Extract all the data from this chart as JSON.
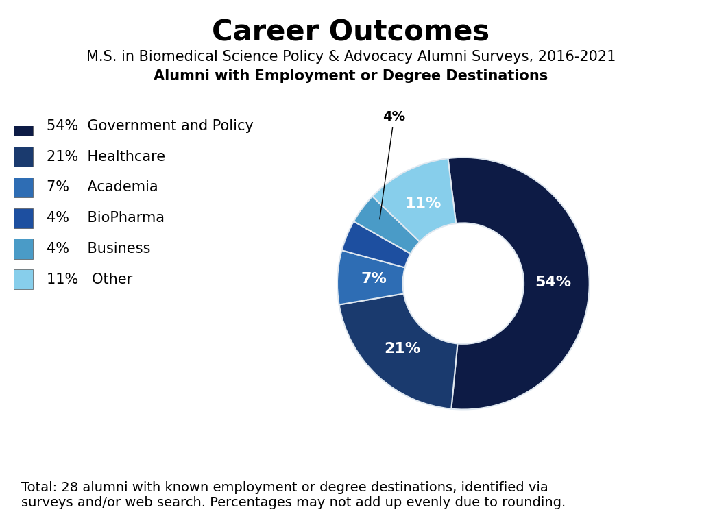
{
  "title": "Career Outcomes",
  "subtitle1": "M.S. in Biomedical Science Policy & Advocacy Alumni Surveys, 2016-2021",
  "subtitle2": "Alumni with Employment or Degree Destinations",
  "footer": "Total: 28 alumni with known employment or degree destinations, identified via\nsurveys and/or web search. Percentages may not add up evenly due to rounding.",
  "categories": [
    "Government and Policy",
    "Healthcare",
    "Academia",
    "BioPharma",
    "Business",
    "Other"
  ],
  "values": [
    54,
    21,
    7,
    4,
    4,
    11
  ],
  "colors": [
    "#0d1b45",
    "#1a3a6e",
    "#2e6db4",
    "#1d4fa0",
    "#4a9bc7",
    "#87ceeb"
  ],
  "legend_labels": [
    "54%  Government and Policy",
    "21%  Healthcare",
    "7%    Academia",
    "4%    BioPharma",
    "4%    Business",
    "11%   Other"
  ],
  "background_color": "#ffffff",
  "title_fontsize": 30,
  "subtitle_fontsize": 15,
  "legend_fontsize": 15,
  "footer_fontsize": 14,
  "wedge_edge_color": "#e0e8f0",
  "wedge_linewidth": 1.5,
  "donut_width": 0.52
}
